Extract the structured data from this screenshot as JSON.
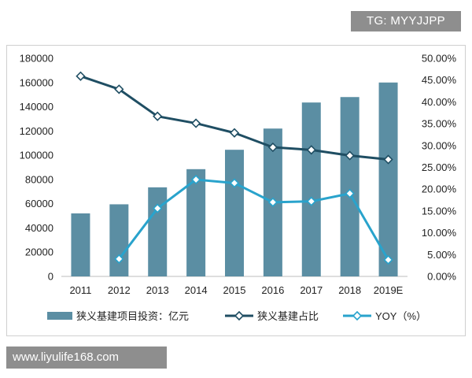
{
  "watermarks": {
    "top": "TG: MYYJJPP",
    "bottom": "www.liyulife168.com"
  },
  "chart_data": {
    "type": "bar",
    "categories": [
      "2011",
      "2012",
      "2013",
      "2014",
      "2015",
      "2016",
      "2017",
      "2018",
      "2019E"
    ],
    "left_axis": {
      "ylim": [
        0,
        180000
      ],
      "ticks": [
        "0",
        "20000",
        "40000",
        "60000",
        "80000",
        "100000",
        "120000",
        "140000",
        "160000",
        "180000"
      ]
    },
    "right_axis": {
      "ylim": [
        0,
        50
      ],
      "ticks": [
        "0.00%",
        "5.00%",
        "10.00%",
        "15.00%",
        "20.00%",
        "25.00%",
        "30.00%",
        "35.00%",
        "40.00%",
        "45.00%",
        "50.00%"
      ]
    },
    "series": [
      {
        "name": "狭义基建项目投资：亿元",
        "kind": "bar",
        "axis": "left",
        "color": "#5b8ea3",
        "values": [
          52000,
          59500,
          73500,
          88500,
          104500,
          122000,
          143500,
          148000,
          160000
        ]
      },
      {
        "name": "狭义基建占比",
        "kind": "line",
        "axis": "right",
        "color": "#1f4e63",
        "values": [
          45.9,
          42.9,
          36.7,
          35.1,
          32.9,
          29.6,
          29.0,
          27.7,
          26.8
        ]
      },
      {
        "name": "YOY（%）",
        "kind": "line",
        "axis": "right",
        "color": "#29a3cc",
        "values": [
          null,
          4.0,
          15.6,
          22.2,
          21.4,
          17.0,
          17.2,
          19.0,
          3.8
        ]
      }
    ]
  }
}
